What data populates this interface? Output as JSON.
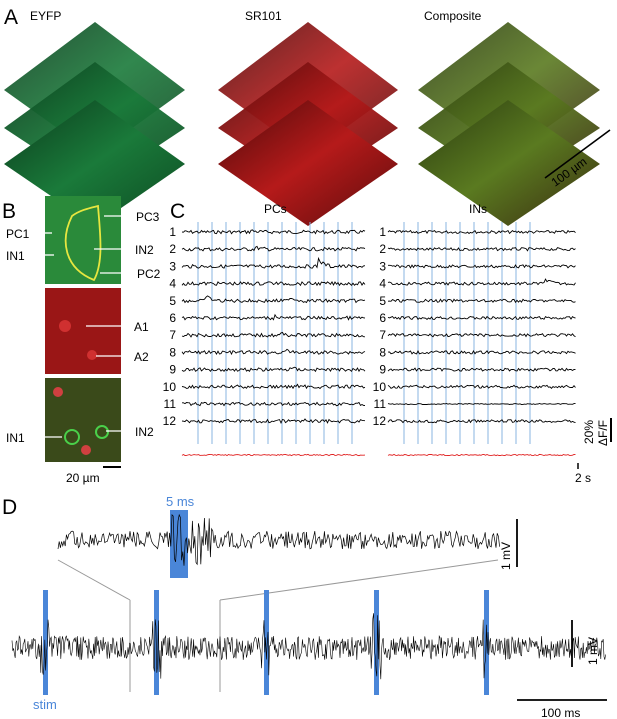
{
  "panel_a": {
    "letter": "A",
    "titles": [
      "EYFP",
      "SR101",
      "Composite"
    ],
    "scale_label": "100 µm"
  },
  "panel_b": {
    "letter": "B",
    "labels": [
      "PC1",
      "IN1",
      "PC3",
      "IN2",
      "PC2",
      "A1",
      "A2",
      "IN1",
      "IN2"
    ],
    "scale_label": "20 µm"
  },
  "panel_c": {
    "letter": "C",
    "left_title": "PCs",
    "right_title": "INs",
    "trace_numbers": [
      "1",
      "2",
      "3",
      "4",
      "5",
      "6",
      "7",
      "8",
      "9",
      "10",
      "11",
      "12"
    ],
    "scale_pct": "20%",
    "scale_dff": "ΔF/F",
    "scale_time": "2 s",
    "colors": {
      "trace": "#000000",
      "stim_line": "#8ab4e0",
      "average": "#e02020"
    }
  },
  "panel_d": {
    "letter": "D",
    "pulse_label": "5 ms",
    "stim_label": "stim",
    "zoom_scale": "1 mV",
    "main_scale": "1 mV",
    "time_scale": "100 ms",
    "colors": {
      "stim": "#4a86d8"
    }
  }
}
